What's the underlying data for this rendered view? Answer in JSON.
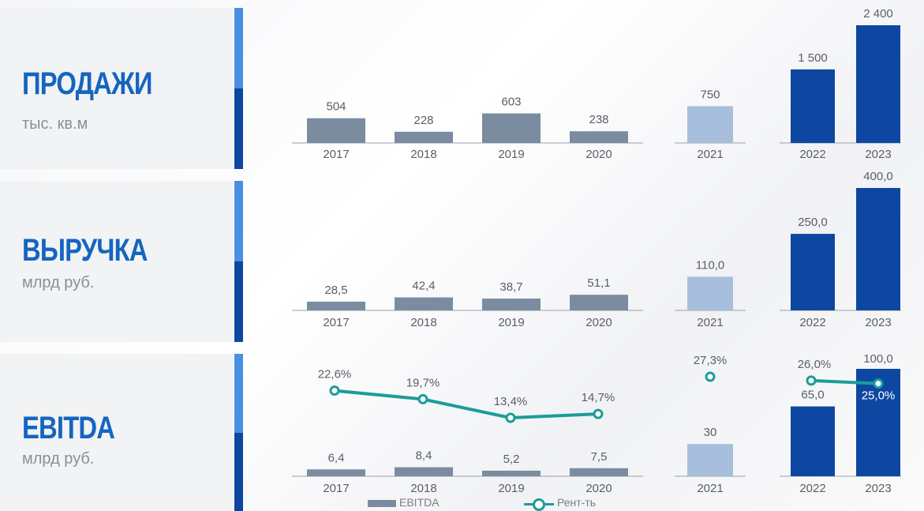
{
  "panels": [
    {
      "title": "ПРОДАЖИ",
      "unit": "тыс. кв.м"
    },
    {
      "title": "ВЫРУЧКА",
      "unit": "млрд руб."
    },
    {
      "title": "EBITDA",
      "unit": "млрд руб."
    }
  ],
  "colors": {
    "hist": "#7b8ca0",
    "forecast_light": "#a7bfdc",
    "forecast_dark": "#0d47a1",
    "line": "#1b9c9a",
    "title": "#1565c0"
  },
  "legend": {
    "bar_label": "EBITDA",
    "line_label": "Рент-ть"
  },
  "chart_data": [
    {
      "type": "bar",
      "title": "ПРОДАЖИ",
      "ylabel": "тыс. кв.м",
      "categories": [
        "2017",
        "2018",
        "2019",
        "2020",
        "2021",
        "2022",
        "2023"
      ],
      "values": [
        504,
        228,
        603,
        238,
        750,
        1500,
        2400
      ],
      "value_labels": [
        "504",
        "228",
        "603",
        "238",
        "750",
        "1 500",
        "2 400"
      ]
    },
    {
      "type": "bar",
      "title": "ВЫРУЧКА",
      "ylabel": "млрд руб.",
      "categories": [
        "2017",
        "2018",
        "2019",
        "2020",
        "2021",
        "2022",
        "2023"
      ],
      "values": [
        28.5,
        42.4,
        38.7,
        51.1,
        110.0,
        250.0,
        400.0
      ],
      "value_labels": [
        "28,5",
        "42,4",
        "38,7",
        "51,1",
        "110,0",
        "250,0",
        "400,0"
      ]
    },
    {
      "type": "bar",
      "title": "EBITDA",
      "ylabel": "млрд руб.",
      "categories": [
        "2017",
        "2018",
        "2019",
        "2020",
        "2021",
        "2022",
        "2023"
      ],
      "series": [
        {
          "name": "EBITDA",
          "values": [
            6.4,
            8.4,
            5.2,
            7.5,
            30,
            65.0,
            100.0
          ],
          "value_labels": [
            "6,4",
            "8,4",
            "5,2",
            "7,5",
            "30",
            "65,0",
            "100,0"
          ]
        },
        {
          "name": "Рент-ть",
          "type": "line",
          "values": [
            22.6,
            19.7,
            13.4,
            14.7,
            27.3,
            26.0,
            25.0
          ],
          "value_labels": [
            "22,6%",
            "19,7%",
            "13,4%",
            "14,7%",
            "27,3%",
            "26,0%",
            "25,0%"
          ]
        }
      ]
    }
  ]
}
